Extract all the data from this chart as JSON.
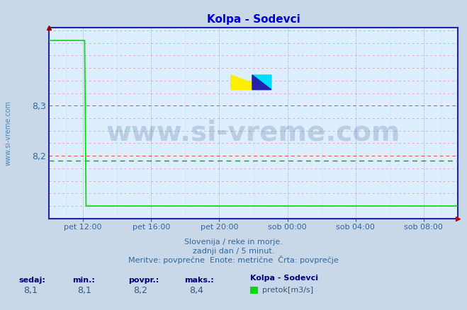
{
  "title": "Kolpa - Sodevci",
  "title_color": "#0000cc",
  "bg_color": "#c8d8e8",
  "plot_bg_color": "#ddeeff",
  "border_color": "#2222aa",
  "grid_color_red": "#dd4444",
  "grid_color_blue": "#9999cc",
  "line_color": "#00dd00",
  "avg_line_color": "#00aa00",
  "avg_value": 8.19,
  "ylim": [
    8.075,
    8.455
  ],
  "yticks": [
    8.2,
    8.3
  ],
  "tick_color": "#336699",
  "watermark": "www.si-vreme.com",
  "watermark_color": "#1a3a6a",
  "watermark_alpha": 0.18,
  "side_label": "www.si-vreme.com",
  "xtick_labels": [
    "pet 12:00",
    "pet 16:00",
    "pet 20:00",
    "sob 00:00",
    "sob 04:00",
    "sob 08:00"
  ],
  "xtick_fracs": [
    0.0833,
    0.25,
    0.4167,
    0.5833,
    0.75,
    0.9167
  ],
  "subtitle1": "Slovenija / reke in morje.",
  "subtitle2": "zadnji dan / 5 minut.",
  "subtitle3": "Meritve: povprečne  Enote: metrične  Črta: povprečje",
  "footer_labels": [
    "sedaj:",
    "min.:",
    "povpr.:",
    "maks.:"
  ],
  "footer_vals": [
    "8,1",
    "8,1",
    "8,2",
    "8,4"
  ],
  "footer_station": "Kolpa - Sodevci",
  "footer_legend_label": "pretok[m3/s]",
  "n_points": 288,
  "drop_index": 25,
  "high_value": 8.43,
  "low_value": 8.1
}
